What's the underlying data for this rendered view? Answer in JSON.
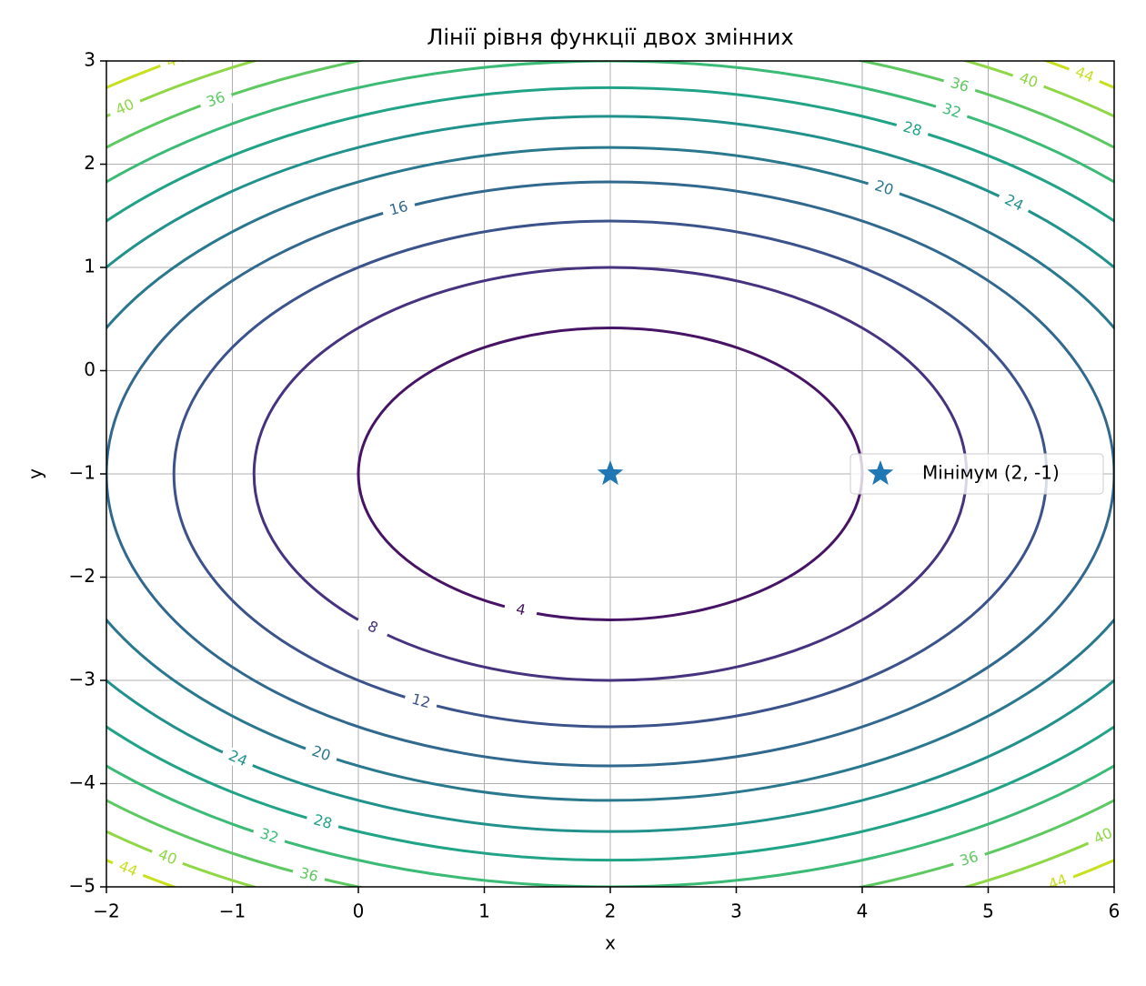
{
  "chart_data": {
    "type": "contour",
    "title": "Лінії рівня функції двох змінних",
    "x_label": "x",
    "y_label": "y",
    "xlim": [
      -2,
      6
    ],
    "ylim": [
      -5,
      3
    ],
    "xticks": [
      {
        "value": -2,
        "label": "−2"
      },
      {
        "value": -1,
        "label": "−1"
      },
      0,
      1,
      2,
      3,
      4,
      5,
      6
    ],
    "yticks": [
      {
        "value": -5,
        "label": "−5"
      },
      {
        "value": -4,
        "label": "−4"
      },
      {
        "value": -3,
        "label": "−3"
      },
      {
        "value": -2,
        "label": "−2"
      },
      {
        "value": -1,
        "label": "−1"
      },
      0,
      1,
      2,
      3
    ],
    "grid": true,
    "center": {
      "x": 2,
      "y": -1
    },
    "weights": {
      "x": 1,
      "y": 2
    },
    "contours": [
      {
        "level": 4,
        "color": "#471365"
      },
      {
        "level": 8,
        "color": "#46327e"
      },
      {
        "level": 12,
        "color": "#3b528b"
      },
      {
        "level": 16,
        "color": "#31688e"
      },
      {
        "level": 20,
        "color": "#2a788e"
      },
      {
        "level": 24,
        "color": "#21918c"
      },
      {
        "level": 28,
        "color": "#20a386"
      },
      {
        "level": 32,
        "color": "#3bbb75"
      },
      {
        "level": 36,
        "color": "#5ec962"
      },
      {
        "level": 40,
        "color": "#8fd744"
      },
      {
        "level": 44,
        "color": "#c8e020"
      }
    ],
    "marker": {
      "name": "Мінімум (2, -1)",
      "x": 2,
      "y": -1,
      "color": "#1f77b4"
    },
    "legend": "right"
  }
}
